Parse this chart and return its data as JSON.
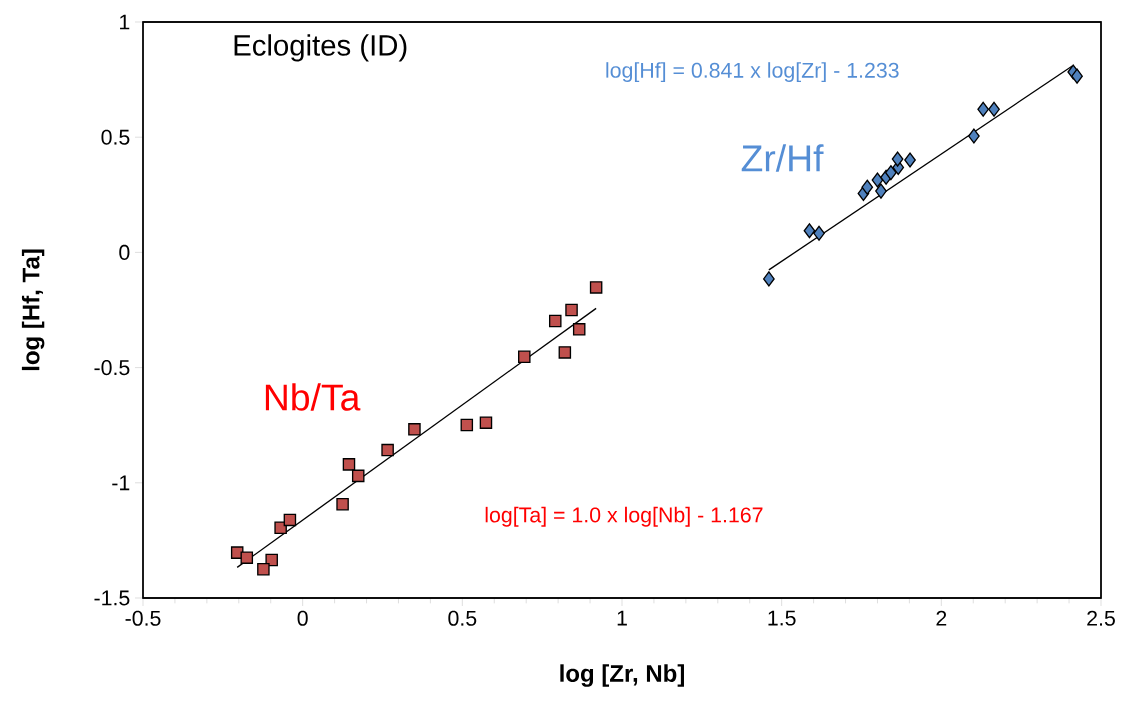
{
  "chart_data": {
    "type": "scatter",
    "xlabel": "log [Zr, Nb]",
    "ylabel": "log [Hf, Ta]",
    "xlim": [
      -0.5,
      2.5
    ],
    "ylim": [
      -1.5,
      1
    ],
    "xticks": [
      -0.5,
      0,
      0.5,
      1,
      1.5,
      2,
      2.5
    ],
    "yticks": [
      -1.5,
      -1,
      -0.5,
      0,
      0.5,
      1
    ],
    "grid": false,
    "legend": false,
    "series": [
      {
        "name": "Nb/Ta",
        "marker": "square",
        "color": "#c0504d",
        "x": [
          -0.205,
          -0.175,
          -0.097,
          -0.123,
          -0.069,
          -0.04,
          0.125,
          0.145,
          0.174,
          0.266,
          0.35,
          0.514,
          0.574,
          0.694,
          0.791,
          0.821,
          0.842,
          0.866,
          0.919
        ],
        "values": [
          -1.303,
          -1.325,
          -1.335,
          -1.375,
          -1.195,
          -1.161,
          -1.093,
          -0.92,
          -0.97,
          -0.858,
          -0.768,
          -0.749,
          -0.739,
          -0.453,
          -0.298,
          -0.434,
          -0.25,
          -0.334,
          -0.152
        ]
      },
      {
        "name": "Zr/Hf",
        "marker": "diamond",
        "color": "#4f81bd",
        "x": [
          1.46,
          1.587,
          1.617,
          1.756,
          1.768,
          1.8,
          1.811,
          1.827,
          1.842,
          1.865,
          1.863,
          1.902,
          2.102,
          2.131,
          2.165,
          2.413,
          2.425
        ],
        "values": [
          -0.115,
          0.094,
          0.083,
          0.256,
          0.283,
          0.314,
          0.266,
          0.326,
          0.346,
          0.369,
          0.405,
          0.401,
          0.505,
          0.621,
          0.621,
          0.783,
          0.765
        ]
      },
      {
        "type": "line",
        "marker": "none",
        "color": "#000000",
        "x": [
          -0.205,
          0.919
        ],
        "values": [
          -1.367,
          -0.243
        ]
      },
      {
        "type": "line",
        "marker": "none",
        "color": "#000000",
        "x": [
          1.46,
          2.41
        ],
        "values": [
          -0.076,
          0.809
        ]
      }
    ],
    "annotations": [
      "Eclogites (ID)",
      "log[Hf] = 0.841 x log[Zr] - 1.233",
      "log[Ta] = 1.0 x log[Nb] - 1.167"
    ]
  }
}
